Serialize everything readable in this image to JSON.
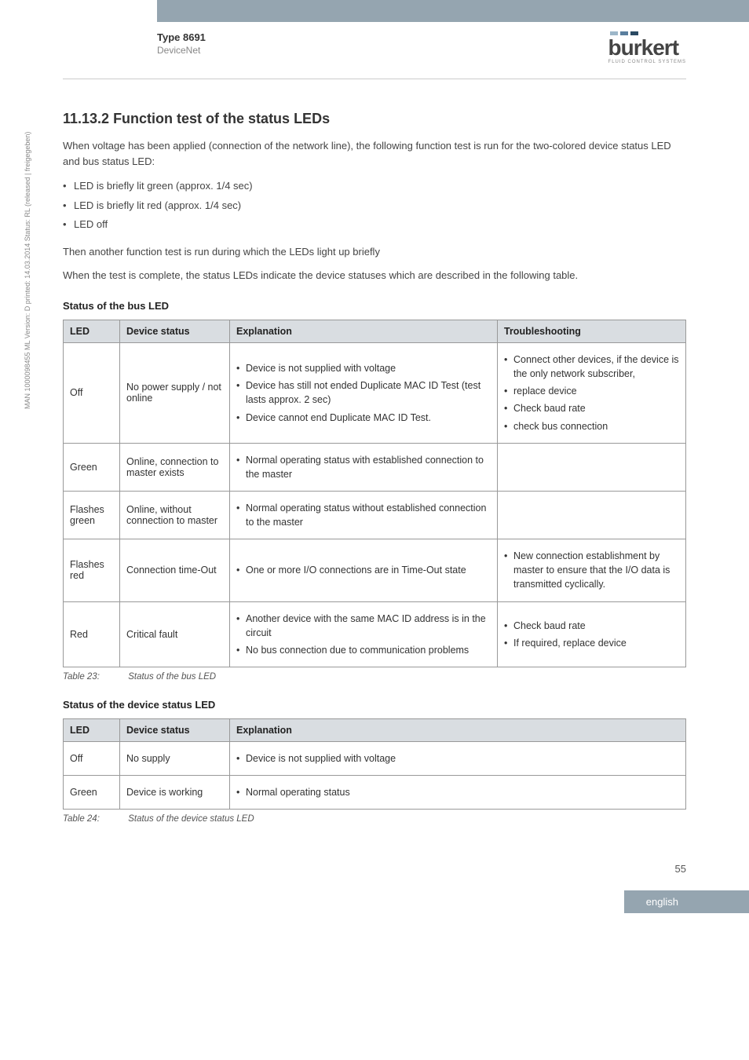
{
  "header": {
    "type_label": "Type 8691",
    "subtitle": "DeviceNet",
    "logo_colors": [
      "#9db7c9",
      "#5a7f9e",
      "#2b4a63"
    ],
    "logo_text": "burkert",
    "logo_subtext": "FLUID CONTROL SYSTEMS"
  },
  "side_note": "MAN 1000098455 ML Version: D   printed: 14.03.2014 Status: RL (released | freigegeben)",
  "section": {
    "number_title": "11.13.2 Function test of the status LEDs",
    "intro": "When voltage has been applied (connection of the network line), the following function test is run for the two-colored device status LED and bus status LED:",
    "test_steps": [
      "LED is briefly lit green (approx. 1/4 sec)",
      "LED is briefly lit red (approx. 1/4 sec)",
      "LED off"
    ],
    "after1": "Then another function test is run during which the LEDs light up briefly",
    "after2": "When the test is complete, the status LEDs indicate the device statuses which are described in the following table."
  },
  "bus_table": {
    "heading": "Status of the bus LED",
    "columns": [
      "LED",
      "Device status",
      "Explanation",
      "Troubleshooting"
    ],
    "rows": [
      {
        "led": "Off",
        "status": "No power supply / not online",
        "expl": [
          "Device is not supplied with voltage",
          "Device has still not ended Duplicate MAC ID Test (test lasts approx. 2 sec)",
          "Device cannot end Duplicate MAC ID Test."
        ],
        "trouble": [
          "Connect other devices, if the device is the only network subscriber,",
          "replace device",
          "Check baud rate",
          "check bus connection"
        ]
      },
      {
        "led": "Green",
        "status": "Online, connection to master exists",
        "expl": [
          "Normal operating status with established connection to the master"
        ],
        "trouble": []
      },
      {
        "led": "Flashes green",
        "status": "Online, without connection to master",
        "expl": [
          "Normal operating status without established connection to the master"
        ],
        "trouble": []
      },
      {
        "led": "Flashes red",
        "status": "Connection time-Out",
        "expl": [
          "One or more I/O connections are in Time-Out state"
        ],
        "trouble": [
          "New connection establishment by master to ensure that the I/O data is transmitted cyclically."
        ]
      },
      {
        "led": "Red",
        "status": "Critical fault",
        "expl": [
          "Another device with the same MAC ID address is in the circuit",
          "No bus connection due to communication problems"
        ],
        "trouble": [
          "Check baud rate",
          "If required, replace device"
        ]
      }
    ],
    "caption_label": "Table 23:",
    "caption_text": "Status of the bus LED"
  },
  "device_table": {
    "heading": "Status of the device status LED",
    "columns": [
      "LED",
      "Device status",
      "Explanation"
    ],
    "rows": [
      {
        "led": "Off",
        "status": "No supply",
        "expl": [
          "Device is not supplied with voltage"
        ]
      },
      {
        "led": "Green",
        "status": "Device is working",
        "expl": [
          "Normal operating status"
        ]
      }
    ],
    "caption_label": "Table 24:",
    "caption_text": "Status of the device status LED"
  },
  "page_number": "55",
  "footer_lang": "english"
}
